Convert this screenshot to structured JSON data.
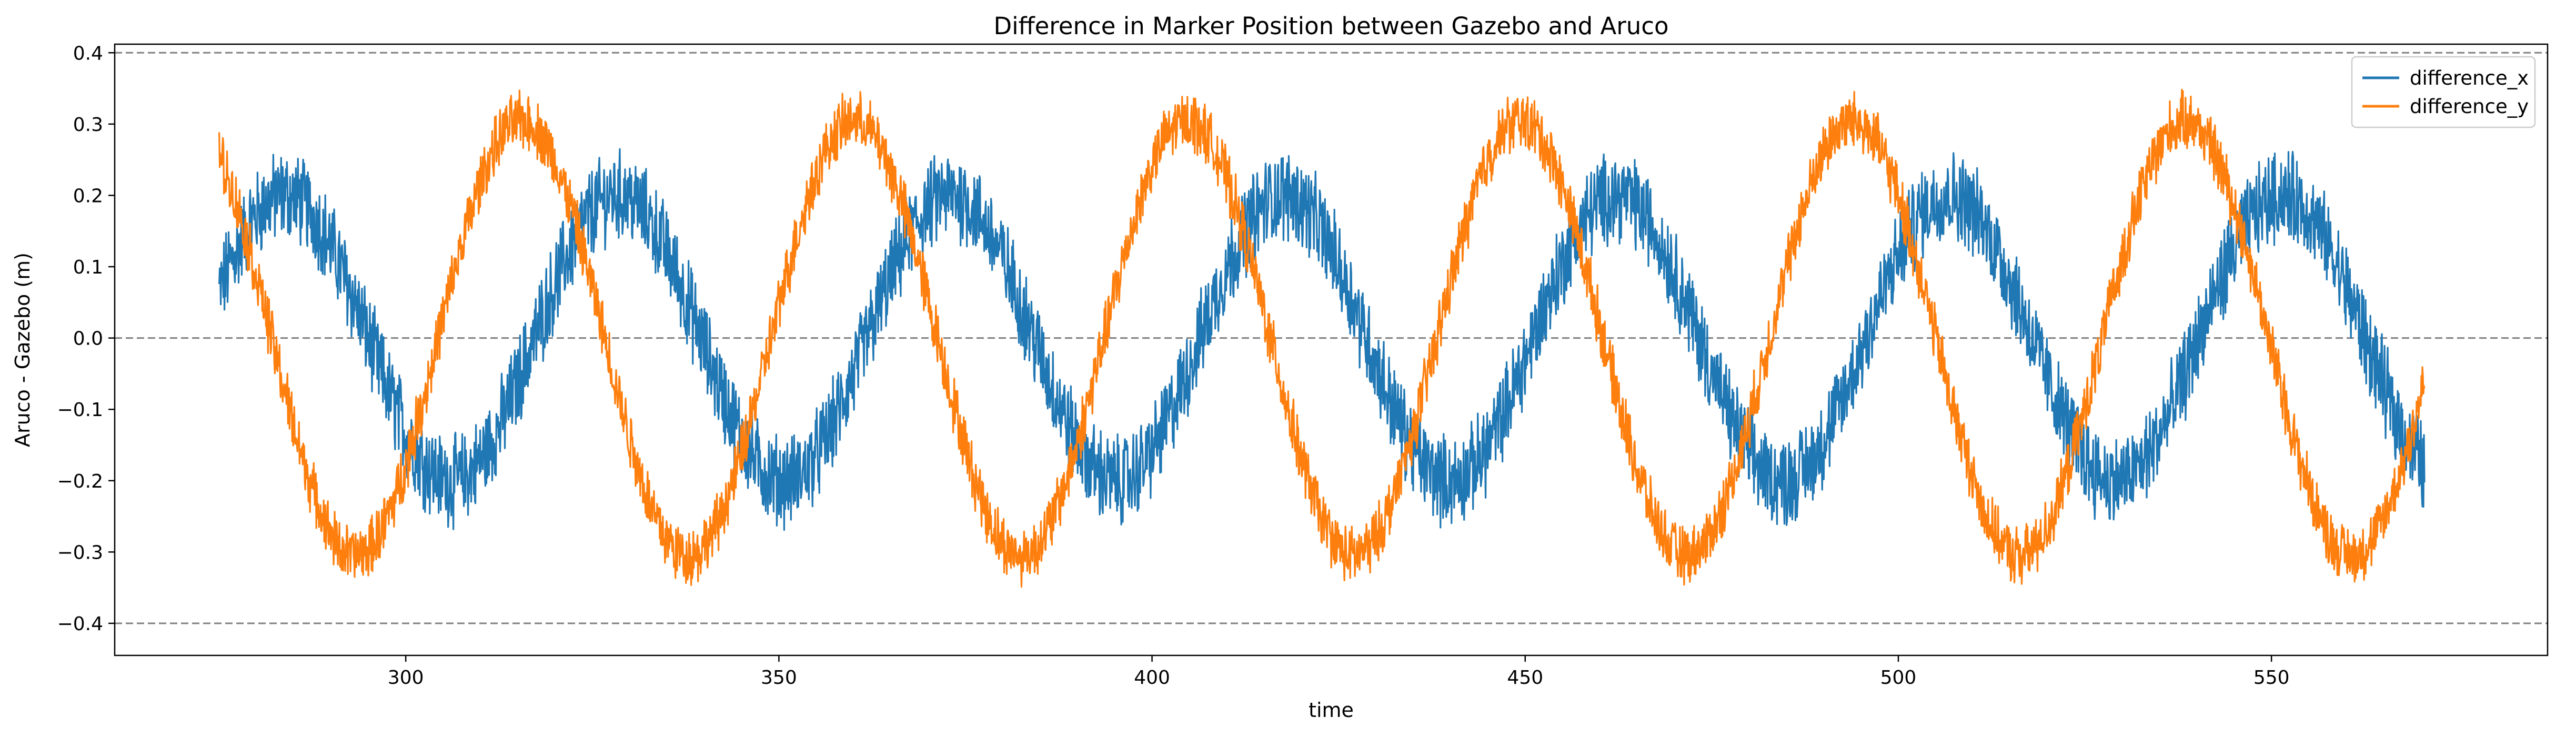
{
  "chart_data": {
    "type": "line",
    "title": "Difference in Marker Position between Gazebo and Aruco",
    "xlabel": "time",
    "ylabel": "Aruco - Gazebo (m)",
    "xlim": [
      261,
      587
    ],
    "ylim": [
      -0.445,
      0.412
    ],
    "xticks": [
      300,
      350,
      400,
      450,
      500,
      550
    ],
    "yticks": [
      -0.4,
      -0.3,
      -0.2,
      -0.1,
      0.0,
      0.1,
      0.2,
      0.3,
      0.4
    ],
    "ytick_labels": [
      "−0.4",
      "−0.3",
      "−0.2",
      "−0.1",
      "0.0",
      "0.1",
      "0.2",
      "0.3",
      "0.4"
    ],
    "reference_lines": [
      -0.4,
      0.0,
      0.4
    ],
    "grid": false,
    "legend_position": "top-right",
    "x_range": [
      275,
      570.5
    ],
    "series": [
      {
        "name": "difference_x",
        "color": "#1f77b4",
        "amplitude": 0.2,
        "period": 44.6,
        "peak_time": 283.8,
        "noise": 0.055,
        "peaks": [
          [
            282,
            0.23
          ],
          [
            326,
            0.22
          ],
          [
            370,
            0.23
          ],
          [
            413,
            0.24
          ],
          [
            457,
            0.22
          ],
          [
            501,
            0.23
          ],
          [
            545,
            0.24
          ]
        ],
        "troughs": [
          [
            304,
            -0.27
          ],
          [
            348,
            -0.29
          ],
          [
            392,
            -0.3
          ],
          [
            435,
            -0.3
          ],
          [
            479,
            -0.27
          ],
          [
            523,
            -0.3
          ],
          [
            567,
            -0.28
          ]
        ]
      },
      {
        "name": "difference_y",
        "color": "#ff7f0e",
        "amplitude": 0.305,
        "period": 44.6,
        "peak_time": 315.5,
        "noise": 0.035,
        "peaks": [
          [
            315,
            0.33
          ],
          [
            359,
            0.33
          ],
          [
            403,
            0.37
          ],
          [
            447,
            0.35
          ],
          [
            492,
            0.33
          ],
          [
            535,
            0.36
          ]
        ],
        "troughs": [
          [
            294,
            -0.4
          ],
          [
            337,
            -0.37
          ],
          [
            381,
            -0.4
          ],
          [
            425,
            -0.38
          ],
          [
            469,
            -0.36
          ],
          [
            513,
            -0.37
          ],
          [
            557,
            -0.39
          ]
        ]
      }
    ]
  }
}
